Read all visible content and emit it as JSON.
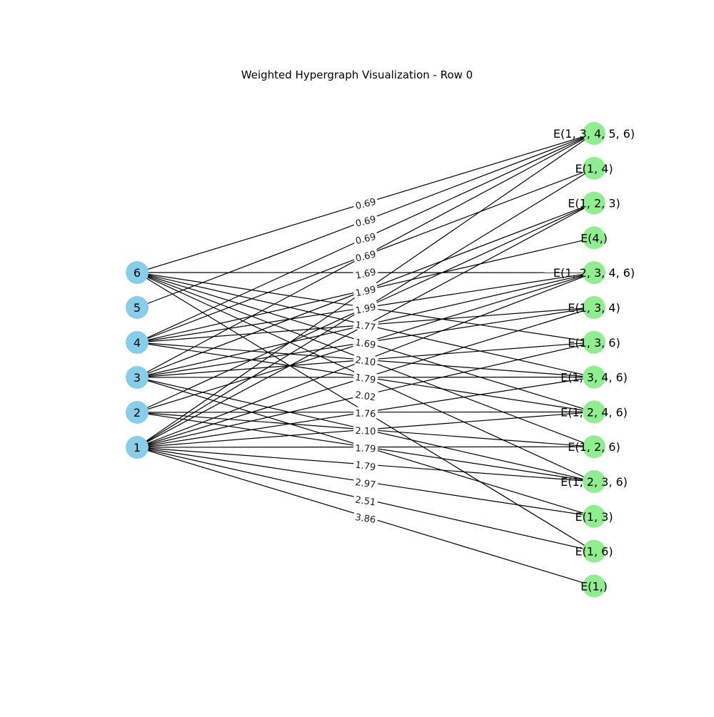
{
  "title": "Weighted Hypergraph Visualization - Row 0",
  "colors": {
    "vertex": "#87ceeb",
    "hyperedge": "#90ee90",
    "edge": "#000000",
    "label_bg": "#ffffff"
  },
  "vertices": [
    "6",
    "5",
    "4",
    "3",
    "2",
    "1"
  ],
  "hyperedges": [
    {
      "label": "E(1, 3, 4, 5, 6)",
      "members": [
        "1",
        "3",
        "4",
        "5",
        "6"
      ]
    },
    {
      "label": "E(1, 4)",
      "members": [
        "1",
        "4"
      ]
    },
    {
      "label": "E(1, 2, 3)",
      "members": [
        "1",
        "2",
        "3"
      ]
    },
    {
      "label": "E(4,)",
      "members": [
        "4"
      ]
    },
    {
      "label": "E(1, 2, 3, 4, 6)",
      "members": [
        "1",
        "2",
        "3",
        "4",
        "6"
      ]
    },
    {
      "label": "E(1, 3, 4)",
      "members": [
        "1",
        "3",
        "4"
      ]
    },
    {
      "label": "E(1, 3, 6)",
      "members": [
        "1",
        "3",
        "6"
      ]
    },
    {
      "label": "E(1, 3, 4, 6)",
      "members": [
        "1",
        "3",
        "4",
        "6"
      ]
    },
    {
      "label": "E(1, 2, 4, 6)",
      "members": [
        "1",
        "2",
        "4",
        "6"
      ]
    },
    {
      "label": "E(1, 2, 6)",
      "members": [
        "1",
        "2",
        "6"
      ]
    },
    {
      "label": "E(1, 2, 3, 6)",
      "members": [
        "1",
        "2",
        "3",
        "6"
      ]
    },
    {
      "label": "E(1, 3)",
      "members": [
        "1",
        "3"
      ]
    },
    {
      "label": "E(1, 6)",
      "members": [
        "1",
        "6"
      ]
    },
    {
      "label": "E(1,)",
      "members": [
        "1"
      ]
    }
  ],
  "weight_labels": [
    "0.69",
    "0.69",
    "0.69",
    "0.69",
    "1.69",
    "1.99",
    "1.99",
    "1.77",
    "1.69",
    "2.10",
    "1.79",
    "2.02",
    "1.76",
    "2.10",
    "1.79",
    "1.79",
    "2.97",
    "2.51",
    "3.86"
  ]
}
